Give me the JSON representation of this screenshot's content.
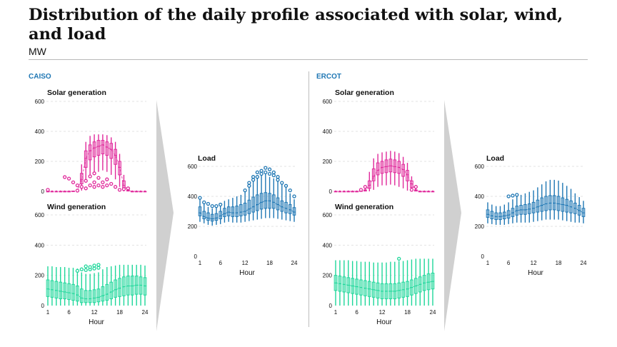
{
  "header": {
    "title": "Distribution of the daily profile associated with solar, wind, and load",
    "unit": "MW"
  },
  "colors": {
    "solar": "#e0299b",
    "wind": "#1ed79a",
    "load": "#1f77b4",
    "arrow": "#d0d0d0"
  },
  "chart_data": [
    {
      "type": "box",
      "region": "CAISO",
      "title": "Solar generation",
      "color": "solar",
      "x": [
        1,
        2,
        3,
        4,
        5,
        6,
        7,
        8,
        9,
        10,
        11,
        12,
        13,
        14,
        15,
        16,
        17,
        18,
        19,
        20,
        21,
        22,
        23,
        24
      ],
      "xticks": [],
      "yticks": [
        0,
        200,
        400,
        600
      ],
      "ylim": [
        0,
        600
      ],
      "median": [
        0,
        0,
        0,
        0,
        0,
        0,
        1,
        3,
        80,
        220,
        270,
        290,
        300,
        310,
        295,
        280,
        240,
        160,
        40,
        5,
        0,
        0,
        0,
        0
      ],
      "q1": [
        0,
        0,
        0,
        0,
        0,
        0,
        0,
        1,
        50,
        160,
        210,
        230,
        240,
        250,
        240,
        220,
        180,
        110,
        20,
        2,
        0,
        0,
        0,
        0
      ],
      "q3": [
        0,
        0,
        0,
        0,
        0,
        0,
        2,
        8,
        120,
        270,
        310,
        330,
        340,
        340,
        330,
        320,
        280,
        200,
        70,
        10,
        0,
        0,
        0,
        0
      ],
      "whisker_low": [
        0,
        0,
        0,
        0,
        0,
        0,
        0,
        0,
        5,
        60,
        100,
        120,
        130,
        140,
        130,
        110,
        80,
        30,
        0,
        0,
        0,
        0,
        0,
        0
      ],
      "whisker_high": [
        0,
        0,
        0,
        0,
        0,
        0,
        5,
        15,
        180,
        330,
        370,
        380,
        380,
        380,
        375,
        360,
        330,
        250,
        110,
        20,
        0,
        0,
        0,
        0
      ],
      "outliers": [
        [
          1,
          10
        ],
        [
          5,
          95
        ],
        [
          6,
          85
        ],
        [
          7,
          60
        ],
        [
          8,
          5
        ],
        [
          8,
          40
        ],
        [
          9,
          30
        ],
        [
          10,
          20
        ],
        [
          10,
          70
        ],
        [
          11,
          40
        ],
        [
          11,
          100
        ],
        [
          12,
          30
        ],
        [
          12,
          60
        ],
        [
          12,
          120
        ],
        [
          13,
          40
        ],
        [
          13,
          90
        ],
        [
          14,
          30
        ],
        [
          14,
          60
        ],
        [
          15,
          40
        ],
        [
          15,
          80
        ],
        [
          16,
          50
        ],
        [
          17,
          30
        ],
        [
          18,
          10
        ],
        [
          19,
          15
        ],
        [
          20,
          20
        ]
      ]
    },
    {
      "type": "box",
      "region": "CAISO",
      "title": "Wind generation",
      "color": "wind",
      "x": [
        1,
        2,
        3,
        4,
        5,
        6,
        7,
        8,
        9,
        10,
        11,
        12,
        13,
        14,
        15,
        16,
        17,
        18,
        19,
        20,
        21,
        22,
        23,
        24
      ],
      "xticks": [
        1,
        6,
        12,
        18,
        24
      ],
      "xlabel": "Hour",
      "yticks": [
        0,
        200,
        400,
        600
      ],
      "ylim": [
        0,
        600
      ],
      "median": [
        110,
        105,
        100,
        95,
        90,
        85,
        80,
        70,
        50,
        45,
        45,
        50,
        55,
        65,
        75,
        90,
        105,
        115,
        125,
        130,
        130,
        135,
        135,
        130
      ],
      "q1": [
        60,
        55,
        50,
        45,
        45,
        40,
        35,
        30,
        20,
        20,
        20,
        20,
        25,
        30,
        35,
        45,
        55,
        60,
        65,
        70,
        70,
        75,
        75,
        70
      ],
      "q3": [
        170,
        165,
        160,
        155,
        150,
        145,
        140,
        130,
        110,
        100,
        100,
        105,
        110,
        125,
        140,
        155,
        170,
        180,
        190,
        195,
        195,
        195,
        190,
        185
      ],
      "whisker_low": [
        0,
        0,
        0,
        0,
        0,
        0,
        0,
        0,
        0,
        0,
        0,
        0,
        0,
        0,
        0,
        0,
        0,
        0,
        0,
        0,
        0,
        0,
        0,
        0
      ],
      "whisker_high": [
        260,
        260,
        255,
        255,
        255,
        250,
        250,
        245,
        220,
        210,
        210,
        215,
        220,
        240,
        255,
        260,
        265,
        270,
        270,
        270,
        270,
        270,
        270,
        265
      ],
      "outliers": [
        [
          8,
          230
        ],
        [
          9,
          240
        ],
        [
          10,
          235
        ],
        [
          10,
          260
        ],
        [
          11,
          240
        ],
        [
          11,
          255
        ],
        [
          12,
          245
        ],
        [
          12,
          265
        ],
        [
          13,
          250
        ],
        [
          13,
          270
        ]
      ]
    },
    {
      "type": "box",
      "region": "CAISO",
      "title": "Load",
      "color": "load",
      "x": [
        1,
        2,
        3,
        4,
        5,
        6,
        7,
        8,
        9,
        10,
        11,
        12,
        13,
        14,
        15,
        16,
        17,
        18,
        19,
        20,
        21,
        22,
        23,
        24
      ],
      "xticks": [
        1,
        6,
        12,
        18,
        24
      ],
      "xlabel": "Hour",
      "yticks": [
        0,
        200,
        400,
        600
      ],
      "ylim": [
        0,
        600
      ],
      "median": [
        290,
        265,
        255,
        250,
        255,
        270,
        285,
        295,
        290,
        290,
        295,
        300,
        315,
        330,
        345,
        360,
        370,
        370,
        360,
        345,
        330,
        320,
        310,
        295
      ],
      "q1": [
        270,
        250,
        240,
        235,
        240,
        250,
        265,
        270,
        265,
        265,
        270,
        275,
        285,
        295,
        305,
        315,
        320,
        320,
        320,
        310,
        300,
        290,
        285,
        275
      ],
      "q3": [
        330,
        300,
        290,
        280,
        285,
        300,
        320,
        330,
        330,
        335,
        345,
        355,
        375,
        395,
        410,
        420,
        425,
        420,
        410,
        390,
        370,
        360,
        345,
        325
      ],
      "whisker_low": [
        230,
        220,
        210,
        205,
        210,
        215,
        225,
        230,
        225,
        225,
        225,
        230,
        235,
        240,
        245,
        250,
        255,
        255,
        255,
        250,
        245,
        240,
        235,
        230
      ],
      "whisker_high": [
        380,
        350,
        330,
        320,
        330,
        340,
        370,
        380,
        390,
        400,
        410,
        430,
        460,
        500,
        520,
        540,
        550,
        530,
        520,
        500,
        480,
        460,
        420,
        380
      ],
      "outliers": [
        [
          1,
          390
        ],
        [
          2,
          360
        ],
        [
          3,
          350
        ],
        [
          4,
          335
        ],
        [
          5,
          335
        ],
        [
          6,
          345
        ],
        [
          12,
          440
        ],
        [
          13,
          470
        ],
        [
          13,
          490
        ],
        [
          14,
          510
        ],
        [
          14,
          530
        ],
        [
          15,
          530
        ],
        [
          15,
          560
        ],
        [
          16,
          550
        ],
        [
          16,
          570
        ],
        [
          17,
          560
        ],
        [
          17,
          590
        ],
        [
          18,
          550
        ],
        [
          18,
          580
        ],
        [
          19,
          540
        ],
        [
          19,
          560
        ],
        [
          20,
          510
        ],
        [
          20,
          530
        ],
        [
          21,
          490
        ],
        [
          22,
          470
        ],
        [
          23,
          440
        ],
        [
          24,
          400
        ]
      ]
    },
    {
      "type": "box",
      "region": "ERCOT",
      "title": "Solar generation",
      "color": "solar",
      "x": [
        1,
        2,
        3,
        4,
        5,
        6,
        7,
        8,
        9,
        10,
        11,
        12,
        13,
        14,
        15,
        16,
        17,
        18,
        19,
        20,
        21,
        22,
        23,
        24
      ],
      "xticks": [],
      "yticks": [
        0,
        200,
        400,
        600
      ],
      "ylim": [
        0,
        600
      ],
      "median": [
        0,
        0,
        0,
        0,
        0,
        0,
        1,
        5,
        40,
        100,
        140,
        160,
        165,
        170,
        165,
        160,
        145,
        110,
        50,
        5,
        0,
        0,
        0,
        0
      ],
      "q1": [
        0,
        0,
        0,
        0,
        0,
        0,
        0,
        2,
        20,
        70,
        110,
        120,
        125,
        130,
        125,
        120,
        100,
        70,
        25,
        2,
        0,
        0,
        0,
        0
      ],
      "q3": [
        0,
        0,
        0,
        0,
        0,
        0,
        3,
        10,
        70,
        150,
        190,
        200,
        210,
        215,
        210,
        200,
        180,
        140,
        70,
        10,
        0,
        0,
        0,
        0
      ],
      "whisker_low": [
        0,
        0,
        0,
        0,
        0,
        0,
        0,
        0,
        0,
        10,
        30,
        40,
        40,
        45,
        40,
        30,
        20,
        5,
        0,
        0,
        0,
        0,
        0,
        0
      ],
      "whisker_high": [
        0,
        0,
        0,
        0,
        0,
        0,
        5,
        20,
        130,
        220,
        250,
        260,
        265,
        270,
        265,
        255,
        230,
        190,
        100,
        20,
        0,
        0,
        0,
        0
      ],
      "outliers": [
        [
          7,
          10
        ],
        [
          8,
          30
        ],
        [
          19,
          10
        ],
        [
          20,
          30
        ]
      ]
    },
    {
      "type": "box",
      "region": "ERCOT",
      "title": "Wind generation",
      "color": "wind",
      "x": [
        1,
        2,
        3,
        4,
        5,
        6,
        7,
        8,
        9,
        10,
        11,
        12,
        13,
        14,
        15,
        16,
        17,
        18,
        19,
        20,
        21,
        22,
        23,
        24
      ],
      "xticks": [
        1,
        6,
        12,
        18,
        24
      ],
      "xlabel": "Hour",
      "yticks": [
        0,
        200,
        400,
        600
      ],
      "ylim": [
        0,
        600
      ],
      "median": [
        150,
        145,
        140,
        135,
        130,
        125,
        120,
        115,
        110,
        105,
        100,
        95,
        95,
        95,
        95,
        100,
        105,
        110,
        120,
        130,
        140,
        150,
        155,
        160
      ],
      "q1": [
        100,
        95,
        90,
        85,
        80,
        75,
        70,
        65,
        60,
        55,
        50,
        45,
        45,
        45,
        45,
        50,
        55,
        60,
        70,
        80,
        90,
        100,
        105,
        110
      ],
      "q3": [
        200,
        195,
        190,
        185,
        180,
        175,
        170,
        165,
        160,
        155,
        150,
        145,
        145,
        145,
        145,
        150,
        155,
        160,
        170,
        180,
        190,
        200,
        210,
        215
      ],
      "whisker_low": [
        0,
        0,
        0,
        0,
        0,
        0,
        0,
        0,
        0,
        0,
        0,
        0,
        0,
        0,
        0,
        0,
        0,
        0,
        0,
        0,
        0,
        0,
        0,
        0
      ],
      "whisker_high": [
        300,
        300,
        300,
        300,
        295,
        295,
        290,
        290,
        290,
        285,
        285,
        285,
        285,
        290,
        290,
        295,
        295,
        300,
        305,
        310,
        310,
        310,
        310,
        310
      ],
      "outliers": [
        [
          16,
          310
        ]
      ]
    },
    {
      "type": "box",
      "region": "ERCOT",
      "title": "Load",
      "color": "load",
      "x": [
        1,
        2,
        3,
        4,
        5,
        6,
        7,
        8,
        9,
        10,
        11,
        12,
        13,
        14,
        15,
        16,
        17,
        18,
        19,
        20,
        21,
        22,
        23,
        24
      ],
      "xticks": [
        1,
        6,
        12,
        18,
        24
      ],
      "xlabel": "Hour",
      "yticks": [
        0,
        200,
        400,
        600
      ],
      "ylim": [
        0,
        600
      ],
      "median": [
        280,
        270,
        265,
        265,
        270,
        275,
        290,
        305,
        310,
        310,
        315,
        320,
        330,
        340,
        350,
        355,
        355,
        350,
        345,
        340,
        330,
        320,
        305,
        290
      ],
      "q1": [
        260,
        250,
        245,
        245,
        250,
        255,
        265,
        275,
        280,
        280,
        285,
        290,
        295,
        300,
        305,
        310,
        310,
        305,
        300,
        295,
        290,
        285,
        275,
        265
      ],
      "q3": [
        310,
        300,
        290,
        290,
        295,
        305,
        320,
        335,
        340,
        345,
        350,
        360,
        375,
        390,
        400,
        405,
        405,
        400,
        390,
        380,
        370,
        355,
        340,
        320
      ],
      "whisker_low": [
        220,
        215,
        210,
        210,
        210,
        215,
        220,
        225,
        225,
        225,
        225,
        230,
        235,
        240,
        245,
        245,
        245,
        245,
        240,
        235,
        230,
        225,
        225,
        220
      ],
      "whisker_high": [
        360,
        345,
        335,
        335,
        345,
        360,
        380,
        400,
        410,
        420,
        430,
        440,
        460,
        480,
        500,
        510,
        510,
        505,
        490,
        470,
        450,
        420,
        395,
        370
      ],
      "outliers": [
        [
          6,
          400
        ],
        [
          7,
          405
        ],
        [
          8,
          410
        ]
      ]
    }
  ]
}
